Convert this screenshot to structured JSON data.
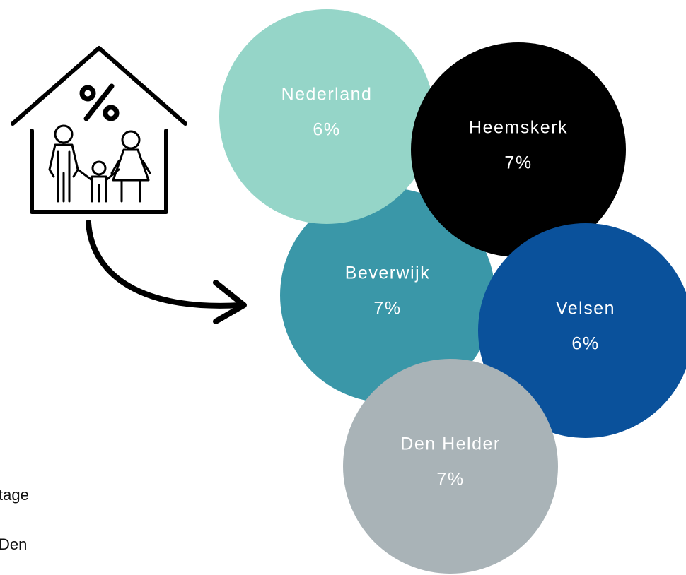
{
  "nodes": [
    {
      "label": "Beverwijk",
      "value": "7%",
      "color": "#3a97a8"
    },
    {
      "label": "Nederland",
      "value": "6%",
      "color": "#95d5c8"
    },
    {
      "label": "Heemskerk",
      "value": "7%",
      "color": "#000000"
    },
    {
      "label": "Velsen",
      "value": "6%",
      "color": "#0a519b"
    },
    {
      "label": "Den Helder",
      "value": "7%",
      "color": "#a9b3b7"
    }
  ],
  "side_text": [
    "tage",
    "Den"
  ]
}
